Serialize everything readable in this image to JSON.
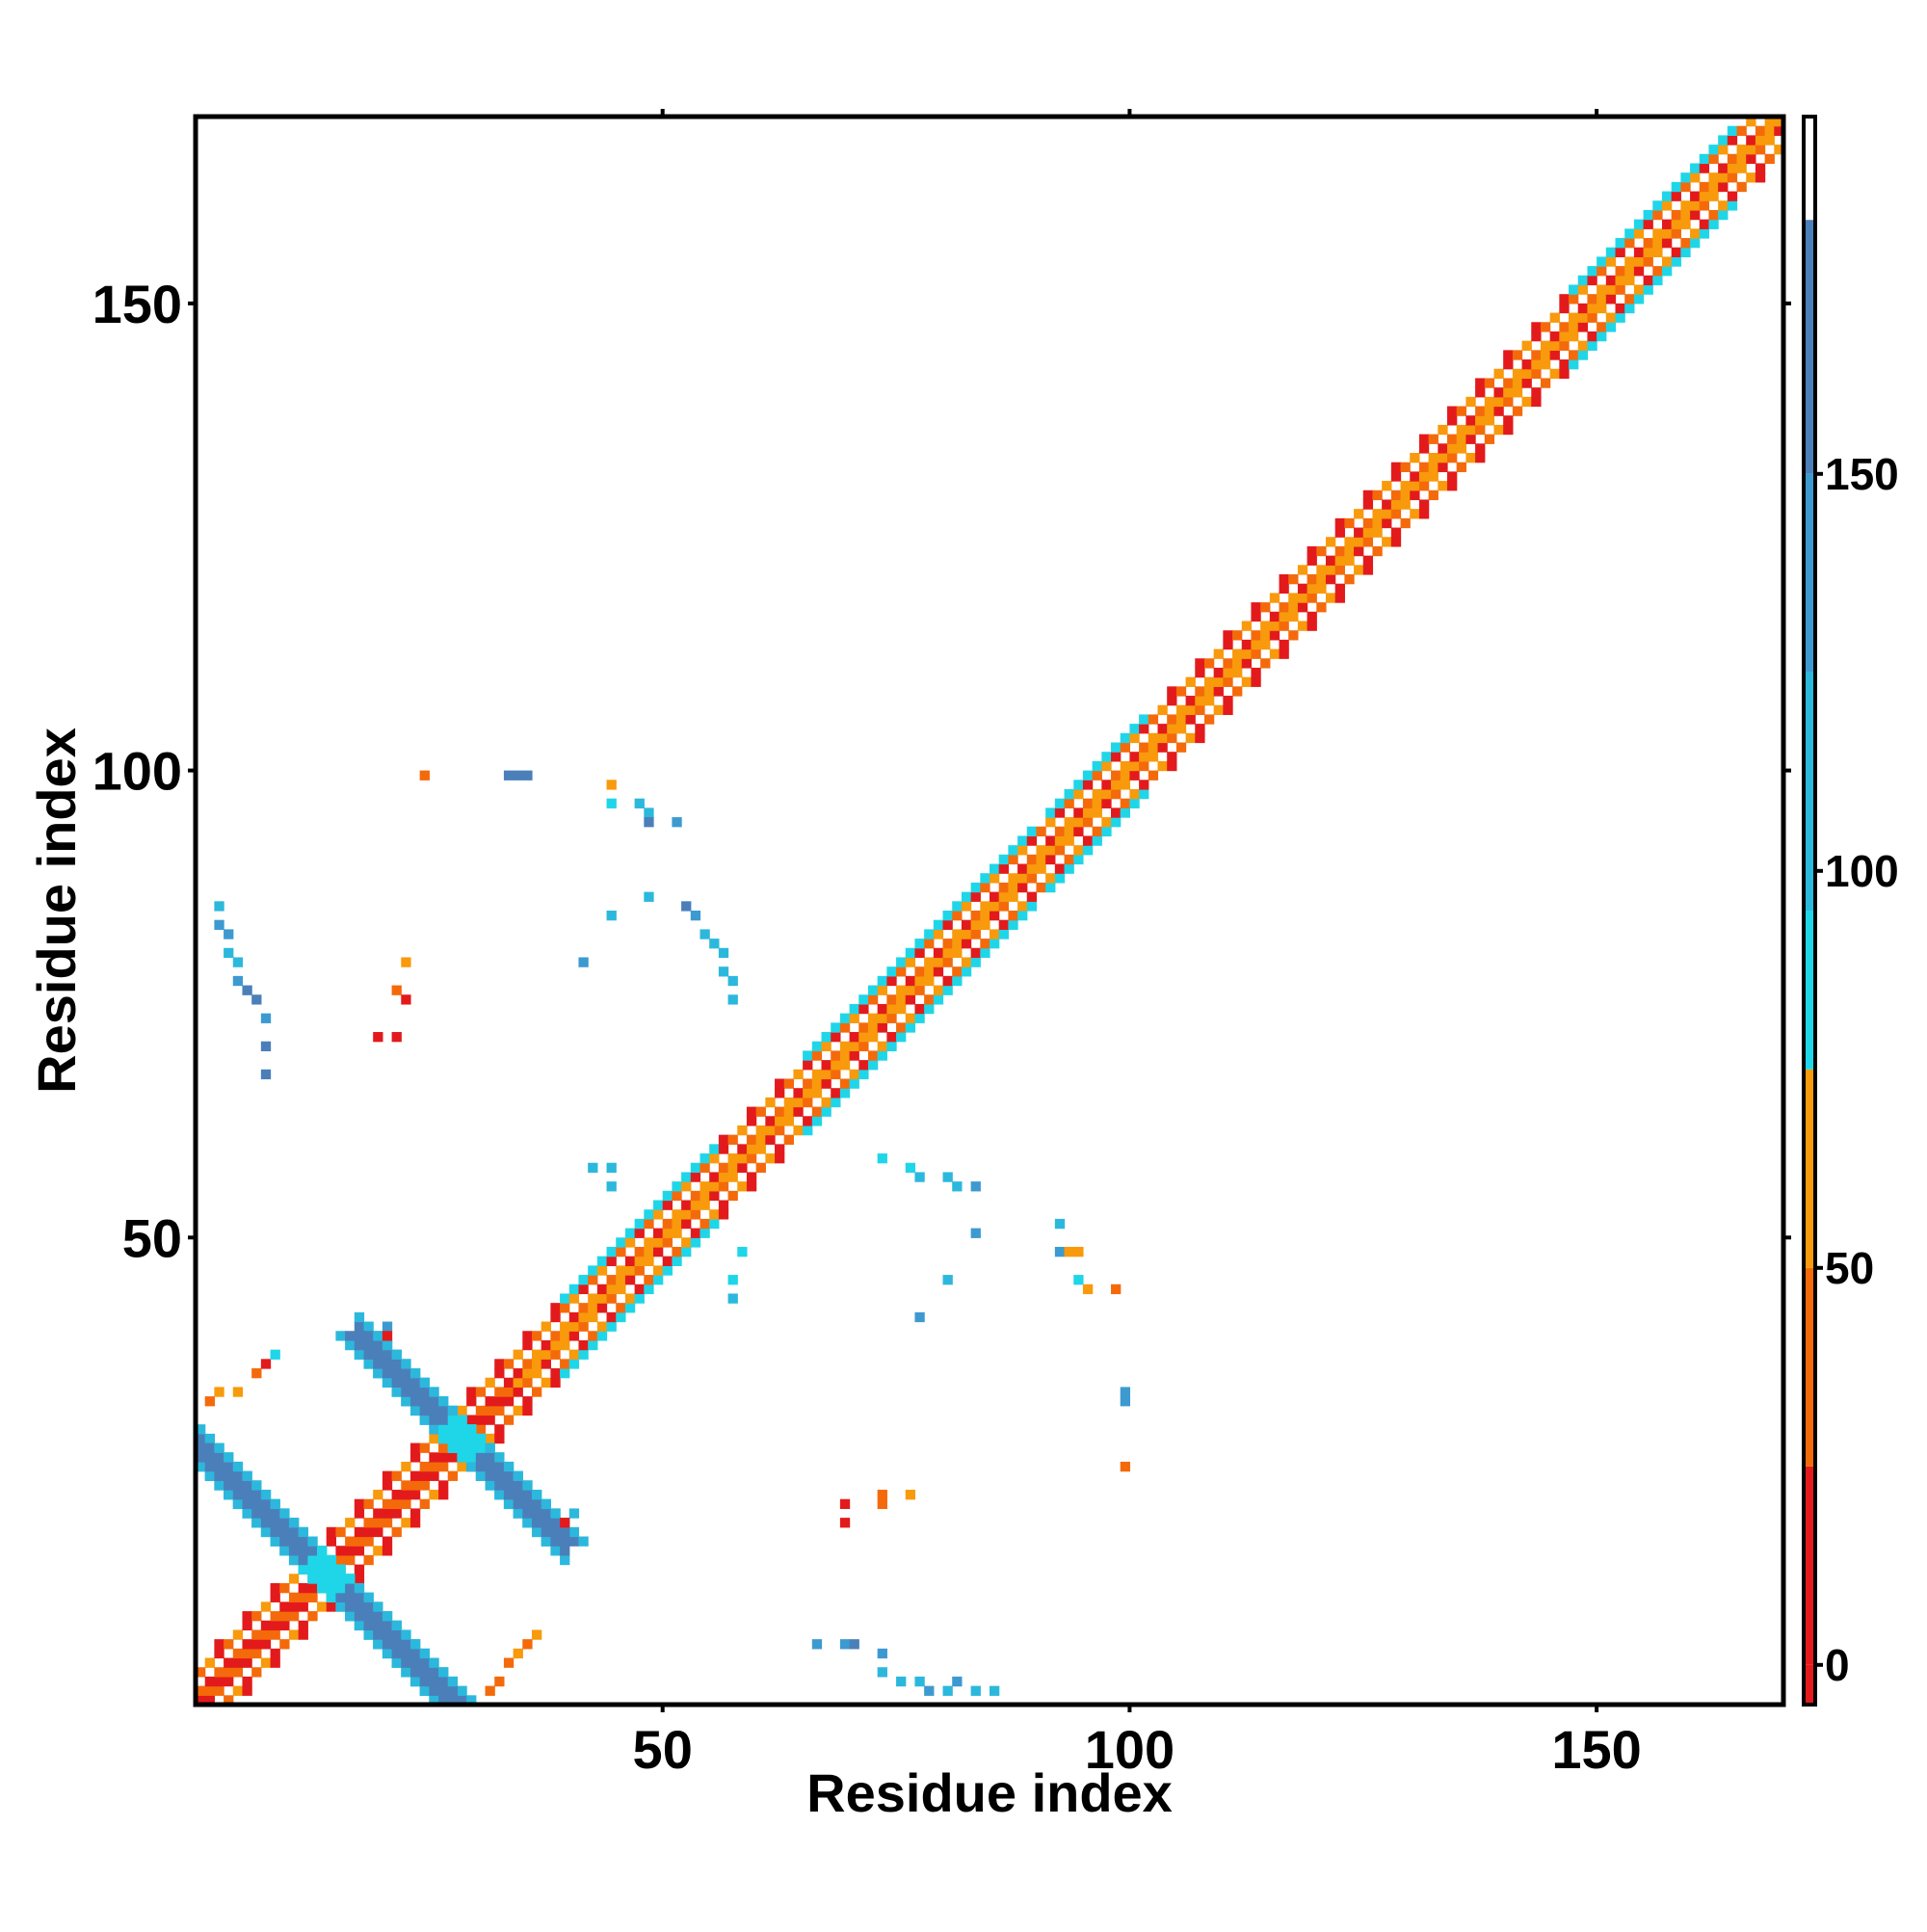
{
  "chart_data": {
    "type": "heatmap",
    "title": "",
    "xlabel": "Residue index",
    "ylabel": "Residue index",
    "xlim": [
      0,
      170
    ],
    "ylim": [
      0,
      170
    ],
    "x_ticks": [
      50,
      100,
      150
    ],
    "y_ticks": [
      50,
      100,
      150
    ],
    "grid": false,
    "colorbar": {
      "ticks": [
        0,
        50,
        100,
        150
      ],
      "range": [
        -5,
        195
      ],
      "bands": [
        {
          "from": -5,
          "to": 0,
          "color": "#e31a1c"
        },
        {
          "from": 0,
          "to": 25,
          "color": "#e31a1c"
        },
        {
          "from": 25,
          "to": 50,
          "color": "#f46a0b"
        },
        {
          "from": 50,
          "to": 75,
          "color": "#f89a0c"
        },
        {
          "from": 75,
          "to": 95,
          "color": "#1fd6e8"
        },
        {
          "from": 95,
          "to": 125,
          "color": "#2cb8dc"
        },
        {
          "from": 125,
          "to": 150,
          "color": "#3d9ad0"
        },
        {
          "from": 150,
          "to": 182,
          "color": "#4b7fba"
        },
        {
          "from": 182,
          "to": 195,
          "color": "#ffffff"
        }
      ]
    },
    "value_colors": {
      "red": "#e31a1c",
      "orange_red": "#f46a0b",
      "orange": "#f89a0c",
      "cyan": "#1fd6e8",
      "light_blue": "#2cb8dc",
      "mid_blue": "#3d9ad0",
      "steel_blue": "#4b7fba"
    },
    "diagonal_band": {
      "from_residue": 1,
      "to_residue": 170,
      "pattern": "checkered near-diagonal contacts, values 0-95",
      "helix_segments_cyan_edge": [
        [
          40,
          56
        ],
        [
          66,
          90
        ],
        [
          92,
          102
        ],
        [
          148,
          165
        ]
      ]
    },
    "regions": [
      {
        "x_range": [
          1,
          28
        ],
        "y_range": [
          1,
          28
        ],
        "orientation": "anti",
        "value_color": "steel_blue",
        "note": "antiparallel contact strip"
      },
      {
        "x_range": [
          18,
          40
        ],
        "y_range": [
          18,
          40
        ],
        "orientation": "anti",
        "value_color": "steel_blue"
      },
      {
        "x_range": [
          2,
          9
        ],
        "y_range": [
          68,
          86
        ],
        "value_color": "light_blue"
      },
      {
        "x_range": [
          40,
          60
        ],
        "y_range": [
          56,
          98
        ],
        "value_color": "cyan"
      },
      {
        "x_range": [
          68,
          100
        ],
        "y_range": [
          1,
          25
        ],
        "value_color": "light_blue"
      },
      {
        "x_range": [
          42,
          58
        ],
        "y_range": [
          42,
          58
        ],
        "value_color": "cyan"
      },
      {
        "x_range": [
          70,
          100
        ],
        "y_range": [
          42,
          60
        ],
        "value_color": "cyan"
      },
      {
        "x_range": [
          100,
          101
        ],
        "y_range": [
          30,
          35
        ],
        "value_color": "light_blue"
      }
    ],
    "cells": [
      {
        "x": 25,
        "y": 100,
        "v": 40
      },
      {
        "x": 34,
        "y": 100,
        "v": 150
      },
      {
        "x": 35,
        "y": 100,
        "v": 150
      },
      {
        "x": 36,
        "y": 100,
        "v": 150
      },
      {
        "x": 45,
        "y": 99,
        "v": 60
      },
      {
        "x": 45,
        "y": 97,
        "v": 80
      },
      {
        "x": 48,
        "y": 97,
        "v": 110
      },
      {
        "x": 49,
        "y": 96,
        "v": 110
      },
      {
        "x": 49,
        "y": 95,
        "v": 160
      },
      {
        "x": 52,
        "y": 95,
        "v": 130
      },
      {
        "x": 49,
        "y": 87,
        "v": 100
      },
      {
        "x": 45,
        "y": 85,
        "v": 100
      },
      {
        "x": 53,
        "y": 86,
        "v": 150
      },
      {
        "x": 54,
        "y": 85,
        "v": 140
      },
      {
        "x": 55,
        "y": 83,
        "v": 100
      },
      {
        "x": 56,
        "y": 82,
        "v": 100
      },
      {
        "x": 57,
        "y": 81,
        "v": 110
      },
      {
        "x": 57,
        "y": 79,
        "v": 100
      },
      {
        "x": 58,
        "y": 78,
        "v": 100
      },
      {
        "x": 58,
        "y": 76,
        "v": 110
      },
      {
        "x": 42,
        "y": 80,
        "v": 140
      },
      {
        "x": 23,
        "y": 80,
        "v": 50
      },
      {
        "x": 22,
        "y": 77,
        "v": 30
      },
      {
        "x": 23,
        "y": 76,
        "v": 20
      },
      {
        "x": 20,
        "y": 72,
        "v": 10
      },
      {
        "x": 22,
        "y": 72,
        "v": 10
      },
      {
        "x": 3,
        "y": 86,
        "v": 110
      },
      {
        "x": 3,
        "y": 84,
        "v": 130
      },
      {
        "x": 4,
        "y": 83,
        "v": 140
      },
      {
        "x": 4,
        "y": 81,
        "v": 110
      },
      {
        "x": 5,
        "y": 80,
        "v": 110
      },
      {
        "x": 5,
        "y": 78,
        "v": 130
      },
      {
        "x": 6,
        "y": 77,
        "v": 150
      },
      {
        "x": 7,
        "y": 76,
        "v": 150
      },
      {
        "x": 8,
        "y": 74,
        "v": 140
      },
      {
        "x": 8,
        "y": 71,
        "v": 150
      },
      {
        "x": 8,
        "y": 68,
        "v": 150
      },
      {
        "x": 43,
        "y": 58,
        "v": 100
      },
      {
        "x": 45,
        "y": 58,
        "v": 110
      },
      {
        "x": 45,
        "y": 56,
        "v": 110
      },
      {
        "x": 59,
        "y": 49,
        "v": 90
      },
      {
        "x": 58,
        "y": 46,
        "v": 90
      },
      {
        "x": 58,
        "y": 44,
        "v": 100
      },
      {
        "x": 74,
        "y": 59,
        "v": 90
      },
      {
        "x": 77,
        "y": 58,
        "v": 90
      },
      {
        "x": 78,
        "y": 57,
        "v": 110
      },
      {
        "x": 81,
        "y": 57,
        "v": 110
      },
      {
        "x": 82,
        "y": 56,
        "v": 100
      },
      {
        "x": 84,
        "y": 56,
        "v": 140
      },
      {
        "x": 84,
        "y": 51,
        "v": 130
      },
      {
        "x": 93,
        "y": 52,
        "v": 120
      },
      {
        "x": 93,
        "y": 49,
        "v": 140
      },
      {
        "x": 94,
        "y": 49,
        "v": 60
      },
      {
        "x": 95,
        "y": 49,
        "v": 60
      },
      {
        "x": 95,
        "y": 46,
        "v": 90
      },
      {
        "x": 96,
        "y": 45,
        "v": 60
      },
      {
        "x": 99,
        "y": 45,
        "v": 40
      },
      {
        "x": 81,
        "y": 46,
        "v": 110
      },
      {
        "x": 78,
        "y": 42,
        "v": 140
      },
      {
        "x": 100,
        "y": 34,
        "v": 130
      },
      {
        "x": 100,
        "y": 33,
        "v": 140
      },
      {
        "x": 100,
        "y": 26,
        "v": 40
      },
      {
        "x": 70,
        "y": 22,
        "v": 10
      },
      {
        "x": 70,
        "y": 20,
        "v": 10
      },
      {
        "x": 74,
        "y": 22,
        "v": 40
      },
      {
        "x": 74,
        "y": 23,
        "v": 30
      },
      {
        "x": 77,
        "y": 23,
        "v": 60
      },
      {
        "x": 67,
        "y": 7,
        "v": 140
      },
      {
        "x": 70,
        "y": 7,
        "v": 130
      },
      {
        "x": 71,
        "y": 7,
        "v": 150
      },
      {
        "x": 74,
        "y": 6,
        "v": 140
      },
      {
        "x": 74,
        "y": 4,
        "v": 110
      },
      {
        "x": 76,
        "y": 3,
        "v": 110
      },
      {
        "x": 78,
        "y": 3,
        "v": 110
      },
      {
        "x": 79,
        "y": 2,
        "v": 130
      },
      {
        "x": 81,
        "y": 2,
        "v": 110
      },
      {
        "x": 82,
        "y": 3,
        "v": 130
      },
      {
        "x": 84,
        "y": 2,
        "v": 120
      },
      {
        "x": 86,
        "y": 2,
        "v": 100
      },
      {
        "x": 34,
        "y": 5,
        "v": 40
      },
      {
        "x": 35,
        "y": 6,
        "v": 50
      },
      {
        "x": 36,
        "y": 7,
        "v": 40
      },
      {
        "x": 37,
        "y": 8,
        "v": 60
      },
      {
        "x": 32,
        "y": 2,
        "v": 40
      },
      {
        "x": 33,
        "y": 3,
        "v": 30
      },
      {
        "x": 2,
        "y": 33,
        "v": 40
      },
      {
        "x": 3,
        "y": 34,
        "v": 60
      },
      {
        "x": 5,
        "y": 34,
        "v": 50
      },
      {
        "x": 7,
        "y": 36,
        "v": 40
      },
      {
        "x": 8,
        "y": 37,
        "v": 20
      },
      {
        "x": 9,
        "y": 38,
        "v": 90
      },
      {
        "x": 21,
        "y": 41,
        "v": 130
      },
      {
        "x": 21,
        "y": 40,
        "v": 10
      },
      {
        "x": 41,
        "y": 21,
        "v": 110
      },
      {
        "x": 40,
        "y": 20,
        "v": 20
      }
    ]
  }
}
